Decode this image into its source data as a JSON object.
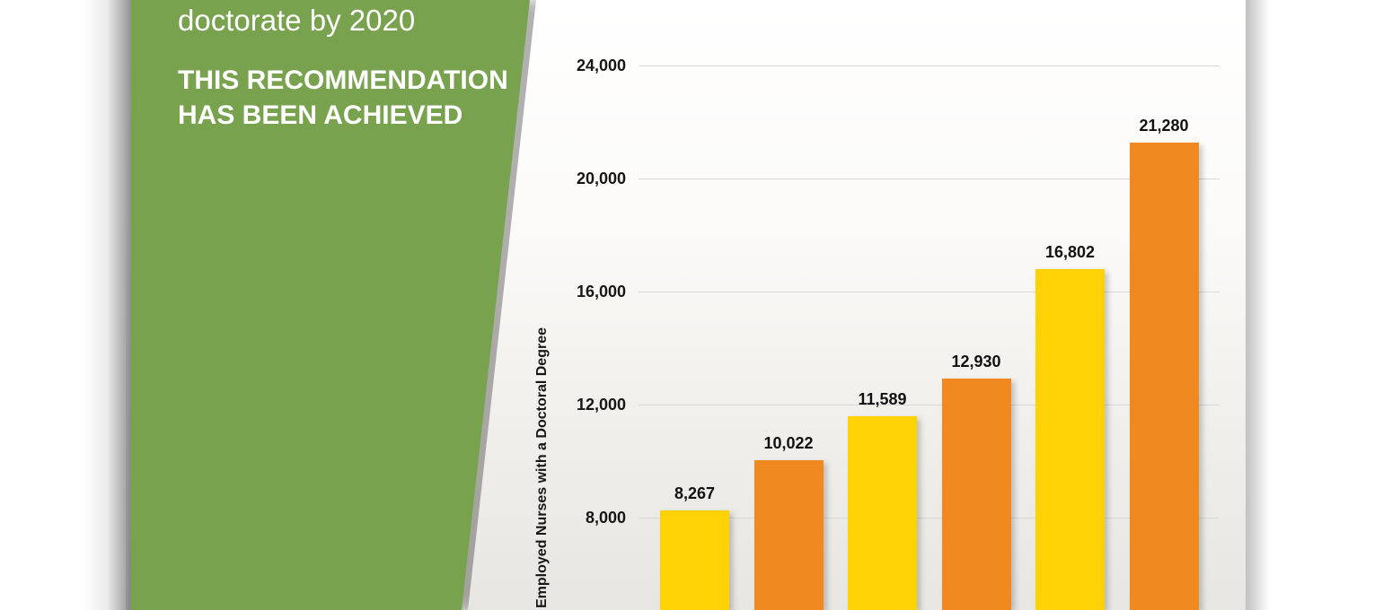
{
  "panel": {
    "subtitle_tail": "doctorate by 2020",
    "achieved_text": "THIS RECOMMENDATION HAS BEEN ACHIEVED",
    "bg_color": "#79A24F",
    "text_color": "#FFFFFF"
  },
  "chart_data": {
    "type": "bar",
    "title": "",
    "ylabel": "Employed Nurses with a Doctoral Degree",
    "xlabel": "",
    "values": [
      8267,
      10022,
      11589,
      12930,
      16802,
      21280
    ],
    "value_labels": [
      "8,267",
      "10,022",
      "11,589",
      "12,930",
      "16,802",
      "21,280"
    ],
    "bar_colors": [
      "#FFD205",
      "#F0891F",
      "#FFD205",
      "#F0891F",
      "#FFD205",
      "#F0891F"
    ],
    "yticks": [
      {
        "value": 24000,
        "label": "24,000"
      },
      {
        "value": 20000,
        "label": "20,000"
      },
      {
        "value": 16000,
        "label": "16,000"
      },
      {
        "value": 12000,
        "label": "12,000"
      },
      {
        "value": 8000,
        "label": "8,000"
      }
    ],
    "grid": true,
    "legend_position": "none",
    "axis_range_visible": [
      8000,
      24000
    ]
  }
}
